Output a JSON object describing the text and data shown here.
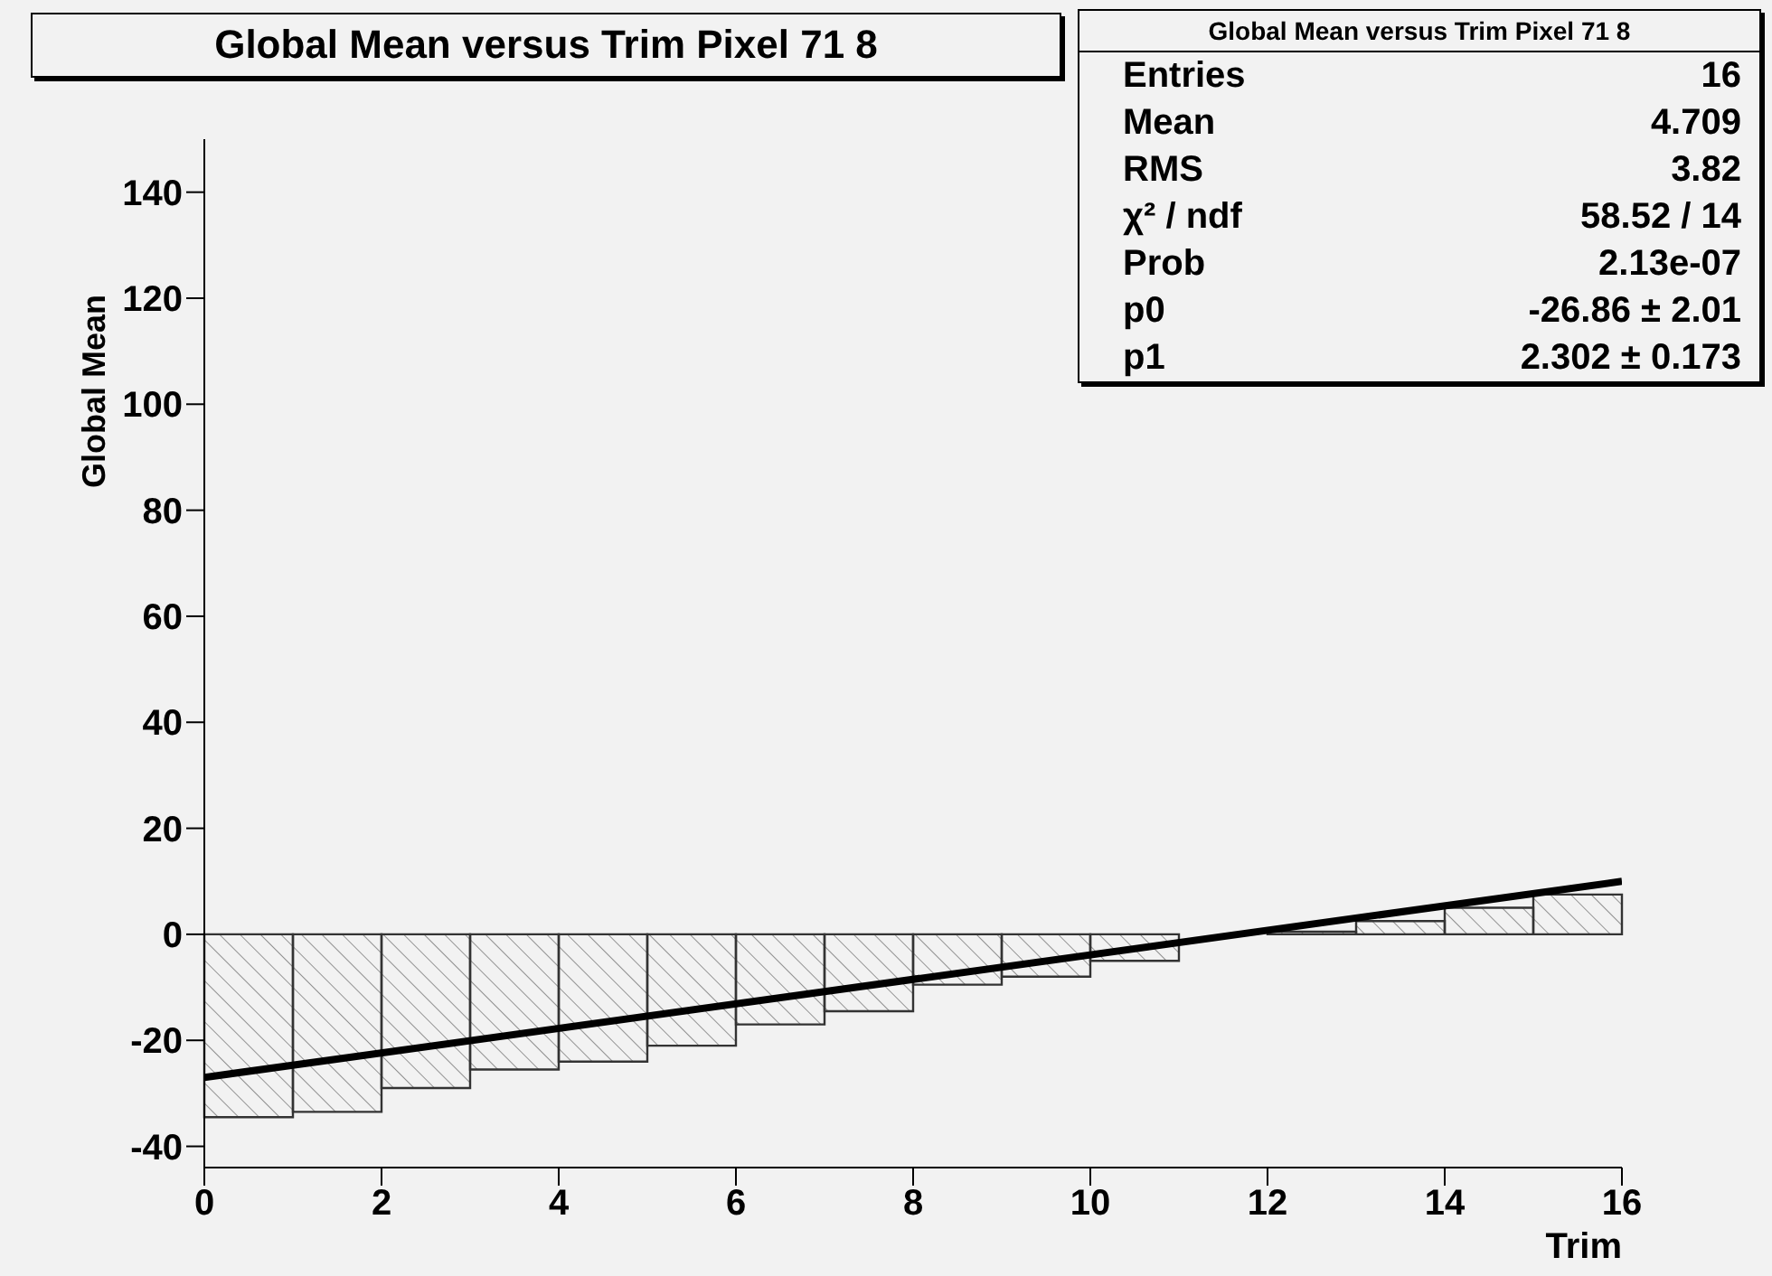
{
  "chart_data": {
    "type": "histogram",
    "title": "Global Mean versus Trim Pixel 71 8",
    "xlabel": "Trim",
    "ylabel": "Global Mean",
    "xlim": [
      0,
      16
    ],
    "xticks": [
      0,
      2,
      4,
      6,
      8,
      10,
      12,
      14,
      16
    ],
    "ylim": [
      -44,
      150
    ],
    "yticks": [
      -40,
      -20,
      0,
      20,
      40,
      60,
      80,
      100,
      120,
      140
    ],
    "grid": false,
    "series": [
      {
        "color": "#333333",
        "bins": [
          0,
          1,
          2,
          3,
          4,
          5,
          6,
          7,
          8,
          9,
          10,
          11,
          12,
          13,
          14,
          15,
          16
        ],
        "values": [
          -34.5,
          -33.5,
          -29,
          -25.5,
          -24,
          -21,
          -17,
          -14.5,
          -9.5,
          -8,
          -5,
          null,
          0.5,
          2.5,
          5,
          7.5
        ]
      },
      {
        "type": "line",
        "color": "#000000",
        "x": [
          0,
          16
        ],
        "values": [
          -27,
          10
        ]
      }
    ],
    "annotations": [
      "Global Mean versus Trim Pixel 71 8",
      "Entries",
      "16",
      "Mean",
      "4.709",
      "RMS",
      "3.82",
      "χ² / ndf",
      "58.52 / 14",
      "Prob",
      "2.13e-07",
      "p0",
      "-26.86 ± 2.01",
      "p1",
      "2.302 ± 0.173"
    ]
  }
}
